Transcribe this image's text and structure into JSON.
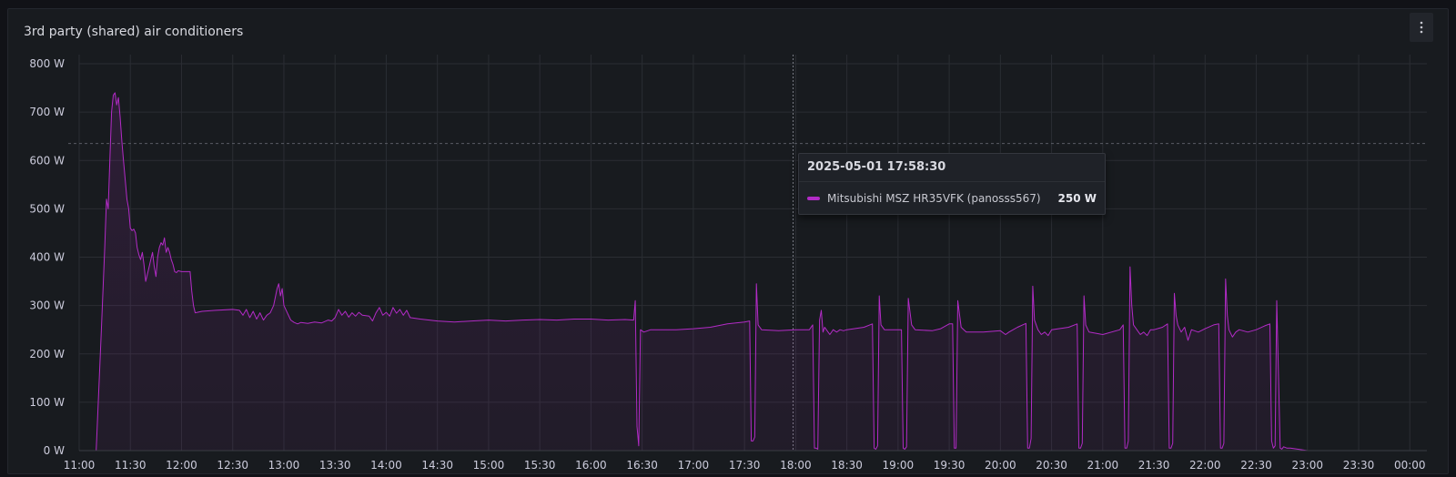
{
  "panel": {
    "title": "3rd party (shared) air conditioners"
  },
  "tooltip": {
    "time": "2025-05-01 17:58:30",
    "series": "Mitsubishi MSZ HR35VFK (panosss567)",
    "value": "250 W"
  },
  "colors": {
    "series": "#b22bc6",
    "background": "#111217",
    "grid": "#2a2d33",
    "text": "#ccccdc"
  },
  "chart_data": {
    "type": "area",
    "series": [
      {
        "name": "Mitsubishi MSZ HR35VFK (panosss567)",
        "points": [
          [
            "11:00",
            0
          ],
          [
            "11:10",
            0
          ],
          [
            "11:13",
            250
          ],
          [
            "11:15",
            420
          ],
          [
            "11:16",
            520
          ],
          [
            "11:17",
            500
          ],
          [
            "11:18",
            600
          ],
          [
            "11:19",
            700
          ],
          [
            "11:20",
            735
          ],
          [
            "11:21",
            740
          ],
          [
            "11:22",
            715
          ],
          [
            "11:23",
            730
          ],
          [
            "11:24",
            690
          ],
          [
            "11:25",
            640
          ],
          [
            "11:26",
            600
          ],
          [
            "11:27",
            560
          ],
          [
            "11:28",
            520
          ],
          [
            "11:29",
            500
          ],
          [
            "11:30",
            460
          ],
          [
            "11:31",
            455
          ],
          [
            "11:32",
            458
          ],
          [
            "11:33",
            450
          ],
          [
            "11:34",
            420
          ],
          [
            "11:35",
            405
          ],
          [
            "11:36",
            395
          ],
          [
            "11:37",
            410
          ],
          [
            "11:38",
            385
          ],
          [
            "11:39",
            350
          ],
          [
            "11:40",
            365
          ],
          [
            "11:41",
            380
          ],
          [
            "11:42",
            395
          ],
          [
            "11:43",
            410
          ],
          [
            "11:44",
            380
          ],
          [
            "11:45",
            360
          ],
          [
            "11:46",
            400
          ],
          [
            "11:47",
            420
          ],
          [
            "11:48",
            430
          ],
          [
            "11:49",
            425
          ],
          [
            "11:50",
            440
          ],
          [
            "11:51",
            410
          ],
          [
            "11:52",
            420
          ],
          [
            "11:53",
            410
          ],
          [
            "11:54",
            395
          ],
          [
            "11:55",
            385
          ],
          [
            "11:56",
            370
          ],
          [
            "11:57",
            368
          ],
          [
            "11:58",
            372
          ],
          [
            "12:00",
            370
          ],
          [
            "12:05",
            370
          ],
          [
            "12:06",
            330
          ],
          [
            "12:07",
            300
          ],
          [
            "12:08",
            285
          ],
          [
            "12:12",
            288
          ],
          [
            "12:20",
            290
          ],
          [
            "12:30",
            292
          ],
          [
            "12:34",
            290
          ],
          [
            "12:36",
            280
          ],
          [
            "12:38",
            292
          ],
          [
            "12:40",
            275
          ],
          [
            "12:42",
            288
          ],
          [
            "12:44",
            272
          ],
          [
            "12:46",
            285
          ],
          [
            "12:48",
            270
          ],
          [
            "12:50",
            280
          ],
          [
            "12:52",
            285
          ],
          [
            "12:54",
            300
          ],
          [
            "12:56",
            335
          ],
          [
            "12:57",
            345
          ],
          [
            "12:58",
            320
          ],
          [
            "12:59",
            335
          ],
          [
            "13:00",
            300
          ],
          [
            "13:02",
            285
          ],
          [
            "13:04",
            270
          ],
          [
            "13:06",
            265
          ],
          [
            "13:08",
            262
          ],
          [
            "13:10",
            265
          ],
          [
            "13:14",
            263
          ],
          [
            "13:18",
            266
          ],
          [
            "13:22",
            264
          ],
          [
            "13:26",
            270
          ],
          [
            "13:28",
            268
          ],
          [
            "13:30",
            275
          ],
          [
            "13:32",
            292
          ],
          [
            "13:34",
            280
          ],
          [
            "13:36",
            288
          ],
          [
            "13:38",
            276
          ],
          [
            "13:40",
            285
          ],
          [
            "13:42",
            278
          ],
          [
            "13:44",
            286
          ],
          [
            "13:46",
            280
          ],
          [
            "13:50",
            278
          ],
          [
            "13:52",
            268
          ],
          [
            "13:54",
            285
          ],
          [
            "13:56",
            296
          ],
          [
            "13:58",
            280
          ],
          [
            "14:00",
            286
          ],
          [
            "14:02",
            278
          ],
          [
            "14:04",
            296
          ],
          [
            "14:06",
            284
          ],
          [
            "14:08",
            292
          ],
          [
            "14:10",
            280
          ],
          [
            "14:12",
            290
          ],
          [
            "14:14",
            275
          ],
          [
            "14:20",
            272
          ],
          [
            "14:30",
            268
          ],
          [
            "14:40",
            266
          ],
          [
            "14:50",
            268
          ],
          [
            "15:00",
            270
          ],
          [
            "15:10",
            268
          ],
          [
            "15:20",
            270
          ],
          [
            "15:30",
            271
          ],
          [
            "15:40",
            270
          ],
          [
            "15:50",
            272
          ],
          [
            "16:00",
            272
          ],
          [
            "16:10",
            270
          ],
          [
            "16:20",
            271
          ],
          [
            "16:25",
            270
          ],
          [
            "16:26",
            310
          ],
          [
            "16:27",
            50
          ],
          [
            "16:28",
            10
          ],
          [
            "16:29",
            250
          ],
          [
            "16:31",
            245
          ],
          [
            "16:35",
            250
          ],
          [
            "16:45",
            250
          ],
          [
            "16:50",
            250
          ],
          [
            "17:00",
            252
          ],
          [
            "17:10",
            255
          ],
          [
            "17:20",
            262
          ],
          [
            "17:30",
            266
          ],
          [
            "17:33",
            268
          ],
          [
            "17:34",
            20
          ],
          [
            "17:35",
            20
          ],
          [
            "17:36",
            28
          ],
          [
            "17:37",
            345
          ],
          [
            "17:38",
            260
          ],
          [
            "17:40",
            250
          ],
          [
            "17:50",
            248
          ],
          [
            "18:00",
            250
          ],
          [
            "18:08",
            250
          ],
          [
            "18:10",
            260
          ],
          [
            "18:11",
            5
          ],
          [
            "18:12",
            5
          ],
          [
            "18:13",
            3
          ],
          [
            "18:14",
            270
          ],
          [
            "18:15",
            290
          ],
          [
            "18:16",
            245
          ],
          [
            "18:17",
            255
          ],
          [
            "18:18",
            250
          ],
          [
            "18:20",
            240
          ],
          [
            "18:22",
            250
          ],
          [
            "18:24",
            245
          ],
          [
            "18:26",
            250
          ],
          [
            "18:28",
            248
          ],
          [
            "18:30",
            250
          ],
          [
            "18:40",
            255
          ],
          [
            "18:45",
            262
          ],
          [
            "18:46",
            5
          ],
          [
            "18:47",
            3
          ],
          [
            "18:48",
            10
          ],
          [
            "18:49",
            320
          ],
          [
            "18:50",
            260
          ],
          [
            "18:52",
            250
          ],
          [
            "19:00",
            250
          ],
          [
            "19:02",
            250
          ],
          [
            "19:03",
            5
          ],
          [
            "19:04",
            3
          ],
          [
            "19:05",
            8
          ],
          [
            "19:06",
            315
          ],
          [
            "19:08",
            260
          ],
          [
            "19:10",
            250
          ],
          [
            "19:20",
            248
          ],
          [
            "19:25",
            252
          ],
          [
            "19:30",
            262
          ],
          [
            "19:32",
            262
          ],
          [
            "19:33",
            5
          ],
          [
            "19:34",
            5
          ],
          [
            "19:35",
            310
          ],
          [
            "19:37",
            255
          ],
          [
            "19:40",
            245
          ],
          [
            "19:50",
            245
          ],
          [
            "20:00",
            248
          ],
          [
            "20:03",
            240
          ],
          [
            "20:05",
            245
          ],
          [
            "20:10",
            255
          ],
          [
            "20:15",
            263
          ],
          [
            "20:16",
            5
          ],
          [
            "20:17",
            5
          ],
          [
            "20:18",
            25
          ],
          [
            "20:19",
            340
          ],
          [
            "20:20",
            270
          ],
          [
            "20:22",
            250
          ],
          [
            "20:24",
            240
          ],
          [
            "20:26",
            245
          ],
          [
            "20:28",
            238
          ],
          [
            "20:30",
            250
          ],
          [
            "20:40",
            255
          ],
          [
            "20:45",
            262
          ],
          [
            "20:46",
            5
          ],
          [
            "20:47",
            5
          ],
          [
            "20:48",
            15
          ],
          [
            "20:49",
            320
          ],
          [
            "20:50",
            260
          ],
          [
            "20:52",
            245
          ],
          [
            "21:00",
            240
          ],
          [
            "21:10",
            250
          ],
          [
            "21:12",
            260
          ],
          [
            "21:13",
            5
          ],
          [
            "21:14",
            5
          ],
          [
            "21:15",
            20
          ],
          [
            "21:16",
            380
          ],
          [
            "21:17",
            300
          ],
          [
            "21:18",
            260
          ],
          [
            "21:20",
            250
          ],
          [
            "21:22",
            240
          ],
          [
            "21:24",
            245
          ],
          [
            "21:26",
            238
          ],
          [
            "21:28",
            250
          ],
          [
            "21:30",
            250
          ],
          [
            "21:35",
            255
          ],
          [
            "21:38",
            262
          ],
          [
            "21:39",
            5
          ],
          [
            "21:40",
            5
          ],
          [
            "21:41",
            15
          ],
          [
            "21:42",
            325
          ],
          [
            "21:43",
            280
          ],
          [
            "21:44",
            260
          ],
          [
            "21:46",
            245
          ],
          [
            "21:48",
            255
          ],
          [
            "21:50",
            228
          ],
          [
            "21:52",
            250
          ],
          [
            "21:56",
            245
          ],
          [
            "22:00",
            252
          ],
          [
            "22:05",
            260
          ],
          [
            "22:08",
            262
          ],
          [
            "22:09",
            5
          ],
          [
            "22:10",
            5
          ],
          [
            "22:11",
            15
          ],
          [
            "22:12",
            355
          ],
          [
            "22:13",
            280
          ],
          [
            "22:14",
            250
          ],
          [
            "22:16",
            235
          ],
          [
            "22:18",
            245
          ],
          [
            "22:20",
            250
          ],
          [
            "22:25",
            245
          ],
          [
            "22:30",
            250
          ],
          [
            "22:35",
            258
          ],
          [
            "22:38",
            262
          ],
          [
            "22:39",
            20
          ],
          [
            "22:40",
            5
          ],
          [
            "22:41",
            10
          ],
          [
            "22:42",
            310
          ],
          [
            "22:44",
            5
          ],
          [
            "22:45",
            3
          ],
          [
            "22:46",
            8
          ],
          [
            "22:48",
            5
          ],
          [
            "22:50",
            5
          ],
          [
            "23:00",
            0
          ],
          [
            "00:00",
            0
          ]
        ]
      }
    ],
    "x_ticks": [
      "11:00",
      "11:30",
      "12:00",
      "12:30",
      "13:00",
      "13:30",
      "14:00",
      "14:30",
      "15:00",
      "15:30",
      "16:00",
      "16:30",
      "17:00",
      "17:30",
      "18:00",
      "18:30",
      "19:00",
      "19:30",
      "20:00",
      "20:30",
      "21:00",
      "21:30",
      "22:00",
      "22:30",
      "23:00",
      "23:30",
      "00:00"
    ],
    "y_ticks": [
      "0 W",
      "100 W",
      "200 W",
      "300 W",
      "400 W",
      "500 W",
      "600 W",
      "700 W",
      "800 W"
    ],
    "ylim": [
      0,
      800
    ],
    "x_range": [
      "11:00",
      "00:10"
    ],
    "threshold_line": 635,
    "hover_time": "17:58:30",
    "grid": true,
    "legend": "none"
  }
}
